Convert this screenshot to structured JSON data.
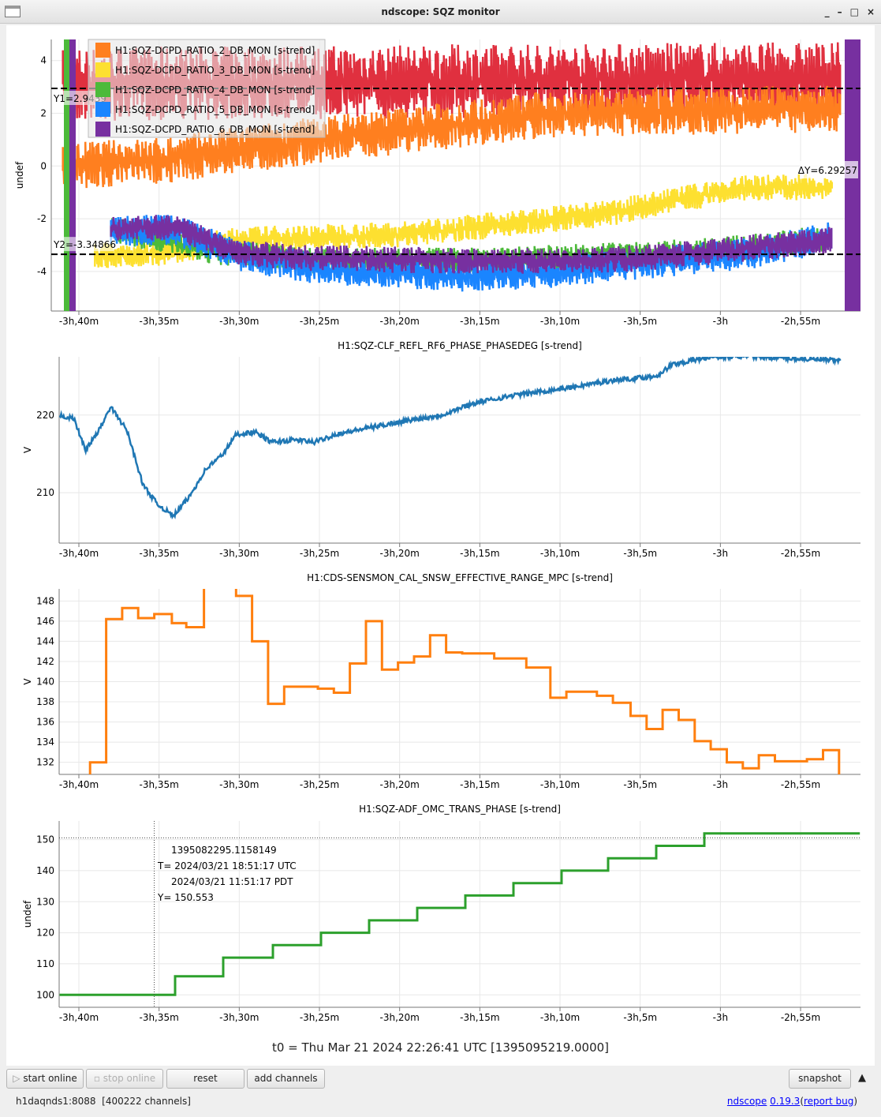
{
  "window": {
    "title": "ndscope: SQZ monitor",
    "controls": [
      "_",
      "–",
      "□",
      "×"
    ]
  },
  "x_ticks": [
    "-3h,40m",
    "-3h,35m",
    "-3h,30m",
    "-3h,25m",
    "-3h,20m",
    "-3h,15m",
    "-3h,10m",
    "-3h,5m",
    "-3h",
    "-2h,55m"
  ],
  "chart_data": [
    {
      "type": "line",
      "title": "",
      "ylabel": "undef",
      "ylim": [
        -5.5,
        4.8
      ],
      "yticks": [
        4,
        2,
        0,
        -2,
        -4
      ],
      "grid": true,
      "legend": "top-left",
      "series": [
        {
          "name": "",
          "color": "#e0303f",
          "band": 1.4,
          "x": [
            -221,
            -200,
            -180,
            -172
          ],
          "y": [
            3.1,
            3.2,
            3.3,
            3.3
          ]
        },
        {
          "name": "H1:SQZ-DCPD_RATIO_2_DB_MON [s-trend]",
          "color": "#ff7f1f",
          "band": 0.9,
          "x": [
            -221,
            -215,
            -205,
            -190,
            -180,
            -172
          ],
          "y": [
            0,
            0.2,
            1.0,
            2.0,
            2.1,
            2.2
          ]
        },
        {
          "name": "H1:SQZ-DCPD_RATIO_3_DB_MON [s-trend]",
          "color": "#fde030",
          "band": 0.5,
          "x": [
            -219,
            -215,
            -210,
            -200,
            -195,
            -187,
            -182,
            -178,
            -173
          ],
          "y": [
            -3.4,
            -3.3,
            -2.8,
            -2.6,
            -2.3,
            -1.8,
            -1.2,
            -0.8,
            -0.8
          ]
        },
        {
          "name": "H1:SQZ-DCPD_RATIO_4_DB_MON [s-trend]",
          "color": "#4cba3a",
          "band": 0.5,
          "x": [
            -218,
            -211,
            -205,
            -195,
            -187,
            -180,
            -173
          ],
          "y": [
            -2.4,
            -3.3,
            -3.6,
            -3.6,
            -3.4,
            -3.2,
            -2.7
          ]
        },
        {
          "name": "H1:SQZ-DCPD_RATIO_5_DB_MON [s-trend]",
          "color": "#1a85ff",
          "band": 0.6,
          "x": [
            -218,
            -214,
            -210,
            -205,
            -196,
            -190,
            -185,
            -178,
            -173
          ],
          "y": [
            -2.5,
            -2.4,
            -3.4,
            -3.9,
            -4.2,
            -4.0,
            -3.7,
            -3.3,
            -2.7
          ]
        },
        {
          "name": "H1:SQZ-DCPD_RATIO_6_DB_MON [s-trend]",
          "color": "#7730a0",
          "band": 0.5,
          "x": [
            -218,
            -214,
            -210,
            -205,
            -196,
            -190,
            -185,
            -178,
            -173
          ],
          "y": [
            -2.4,
            -2.3,
            -3.3,
            -3.5,
            -3.6,
            -3.6,
            -3.5,
            -3.1,
            -2.8
          ]
        }
      ],
      "cursors": {
        "y1": "Y1=2.9439",
        "y2": "Y2=-3.34866",
        "dy": "ΔY=6.29257",
        "y1_value": 2.9439,
        "y2_value": -3.34866
      }
    },
    {
      "type": "line",
      "title": "H1:SQZ-CLF_REFL_RF6_PHASE_PHASEDEG [s-trend]",
      "ylabel": "V",
      "ylim": [
        203.5,
        227.5
      ],
      "yticks": [
        220,
        210
      ],
      "grid": true,
      "series": [
        {
          "color": "#1f77b4",
          "x": [
            -221.2,
            -220.3,
            -219.6,
            -218.9,
            -218,
            -217,
            -216,
            -215.1,
            -214.1,
            -213.1,
            -212.1,
            -211,
            -210.2,
            -209,
            -208,
            -206.5,
            -205.3,
            -204,
            -202.8,
            -200.3,
            -197.4,
            -195.4,
            -193,
            -189.5,
            -186.6,
            -184,
            -183,
            -180.6,
            -177.6,
            -172.5
          ],
          "y": [
            220,
            219.5,
            215.5,
            217.5,
            221,
            218,
            211,
            208.5,
            207,
            209.5,
            213,
            215,
            217.5,
            217.8,
            216.5,
            216.8,
            216.5,
            217.5,
            218,
            219,
            220,
            221.5,
            222.5,
            223.5,
            224.5,
            225,
            226.5,
            227.5,
            227.5,
            227
          ]
        }
      ]
    },
    {
      "type": "line",
      "title": "H1:CDS-SENSMON_CAL_SNSW_EFFECTIVE_RANGE_MPC [s-trend]",
      "ylabel": "V",
      "ylim": [
        130.8,
        149.2
      ],
      "yticks": [
        148,
        146,
        144,
        142,
        140,
        138,
        136,
        134,
        132
      ],
      "grid": true,
      "step": true,
      "series": [
        {
          "color": "#ff7f0e",
          "x": [
            -219.9,
            -219.3,
            -218.3,
            -217.3,
            -216.3,
            -215.3,
            -214.2,
            -213.3,
            -212.2,
            -210.2,
            -209.2,
            -208.2,
            -207.2,
            -205.1,
            -204.1,
            -203.1,
            -202.1,
            -201.1,
            -200.1,
            -199.1,
            -198.1,
            -197.1,
            -196.1,
            -194.1,
            -192.1,
            -190.6,
            -189.6,
            -187.7,
            -186.7,
            -185.6,
            -184.6,
            -183.6,
            -182.6,
            -181.6,
            -180.6,
            -179.6,
            -178.6,
            -177.6,
            -176.6,
            -174.6,
            -173.6,
            -172.6
          ],
          "y": [
            130,
            132,
            146.2,
            147.3,
            146.3,
            146.7,
            145.8,
            145.4,
            152,
            148.5,
            144,
            137.8,
            139.5,
            139.3,
            138.9,
            141.8,
            146,
            141.2,
            141.9,
            142.5,
            144.6,
            142.9,
            142.8,
            142.3,
            141.4,
            138.4,
            139,
            138.6,
            137.9,
            136.6,
            135.3,
            137.2,
            136.2,
            134.1,
            133.3,
            132,
            131.4,
            132.7,
            132.1,
            132.3,
            133.2,
            130
          ]
        }
      ]
    },
    {
      "type": "line",
      "title": "H1:SQZ-ADF_OMC_TRANS_PHASE [s-trend]",
      "ylabel": "undef",
      "ylim": [
        96,
        156
      ],
      "yticks": [
        150,
        140,
        130,
        120,
        110,
        100
      ],
      "grid": true,
      "step": true,
      "series": [
        {
          "color": "#2ca02c",
          "x": [
            -221.2,
            -214,
            -211,
            -207.9,
            -204.9,
            -201.9,
            -198.9,
            -195.9,
            -192.9,
            -189.9,
            -187,
            -184,
            -181,
            -171.3
          ],
          "y": [
            100,
            106,
            112,
            116,
            120,
            124,
            128,
            132,
            136,
            140,
            144,
            148,
            152,
            152
          ]
        }
      ],
      "crosshair": {
        "x": -215.3,
        "y": 150.553,
        "gps": "1395082295.1158149",
        "utc": "T= 2024/03/21 18:51:17 UTC",
        "pdt": "2024/03/21 11:51:17 PDT",
        "yval": "Y= 150.553"
      }
    }
  ],
  "t0": "t0 = Thu Mar 21 2024 22:26:41 UTC [1395095219.0000]",
  "toolbar": {
    "start": "start online",
    "stop": "stop online",
    "reset": "reset",
    "add": "add channels",
    "snapshot": "snapshot",
    "collapse": "▲"
  },
  "status": {
    "server": "h1daqnds1:8088  [400222 channels]",
    "app": "ndscope",
    "version": "0.19.3",
    "bug": "report bug",
    "open": "(",
    "close": ")"
  }
}
